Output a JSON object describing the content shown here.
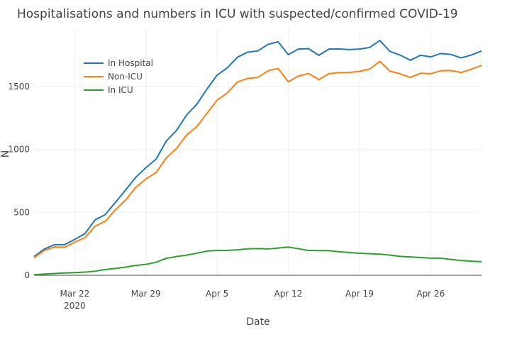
{
  "chart_data": {
    "type": "line",
    "title": "Hospitalisations and numbers in ICU with suspected/confirmed COVID-19",
    "xlabel": "Date",
    "ylabel": "N",
    "xlim": [
      "2020-03-18",
      "2020-05-01"
    ],
    "ylim": [
      0,
      1950
    ],
    "x_ticks": [
      {
        "date": "2020-03-22",
        "label": "Mar 22",
        "sublabel": "2020"
      },
      {
        "date": "2020-03-29",
        "label": "Mar 29",
        "sublabel": ""
      },
      {
        "date": "2020-04-05",
        "label": "Apr 5",
        "sublabel": ""
      },
      {
        "date": "2020-04-12",
        "label": "Apr 12",
        "sublabel": ""
      },
      {
        "date": "2020-04-19",
        "label": "Apr 19",
        "sublabel": ""
      },
      {
        "date": "2020-04-26",
        "label": "Apr 26",
        "sublabel": ""
      }
    ],
    "y_ticks": [
      {
        "value": 0,
        "label": "0"
      },
      {
        "value": 500,
        "label": "500"
      },
      {
        "value": 1000,
        "label": "1000"
      },
      {
        "value": 1500,
        "label": "1500"
      }
    ],
    "grid": true,
    "legend_position": "top-left",
    "x": [
      "2020-03-18",
      "2020-03-19",
      "2020-03-20",
      "2020-03-21",
      "2020-03-22",
      "2020-03-23",
      "2020-03-24",
      "2020-03-25",
      "2020-03-26",
      "2020-03-27",
      "2020-03-28",
      "2020-03-29",
      "2020-03-30",
      "2020-03-31",
      "2020-04-01",
      "2020-04-02",
      "2020-04-03",
      "2020-04-04",
      "2020-04-05",
      "2020-04-06",
      "2020-04-07",
      "2020-04-08",
      "2020-04-09",
      "2020-04-10",
      "2020-04-11",
      "2020-04-12",
      "2020-04-13",
      "2020-04-14",
      "2020-04-15",
      "2020-04-16",
      "2020-04-17",
      "2020-04-18",
      "2020-04-19",
      "2020-04-20",
      "2020-04-21",
      "2020-04-22",
      "2020-04-23",
      "2020-04-24",
      "2020-04-25",
      "2020-04-26",
      "2020-04-27",
      "2020-04-28",
      "2020-04-29",
      "2020-04-30",
      "2020-05-01"
    ],
    "series": [
      {
        "name": "In Hospital",
        "color": "#1f77b4",
        "values": [
          148,
          208,
          243,
          243,
          285,
          330,
          440,
          482,
          579,
          677,
          778,
          855,
          922,
          1066,
          1150,
          1273,
          1358,
          1479,
          1590,
          1648,
          1732,
          1772,
          1782,
          1834,
          1855,
          1753,
          1797,
          1800,
          1747,
          1797,
          1798,
          1793,
          1797,
          1810,
          1865,
          1778,
          1749,
          1708,
          1748,
          1735,
          1762,
          1754,
          1727,
          1750,
          1781
        ]
      },
      {
        "name": "Non-ICU",
        "color": "#ff7f0e",
        "values": [
          140,
          196,
          225,
          222,
          263,
          298,
          390,
          429,
          520,
          598,
          698,
          765,
          816,
          932,
          1007,
          1114,
          1181,
          1286,
          1392,
          1448,
          1536,
          1563,
          1572,
          1624,
          1643,
          1537,
          1583,
          1603,
          1554,
          1602,
          1610,
          1611,
          1620,
          1638,
          1700,
          1621,
          1601,
          1572,
          1605,
          1601,
          1625,
          1626,
          1611,
          1637,
          1668
        ]
      },
      {
        "name": "In ICU",
        "color": "#2ca02c",
        "values": [
          4,
          9,
          14,
          18,
          21,
          25,
          32,
          46,
          54,
          65,
          78,
          87,
          103,
          135,
          149,
          160,
          175,
          192,
          197,
          198,
          202,
          210,
          212,
          209,
          216,
          224,
          211,
          197,
          196,
          196,
          187,
          181,
          175,
          171,
          168,
          160,
          150,
          146,
          141,
          136,
          136,
          126,
          117,
          112,
          108
        ]
      }
    ]
  }
}
